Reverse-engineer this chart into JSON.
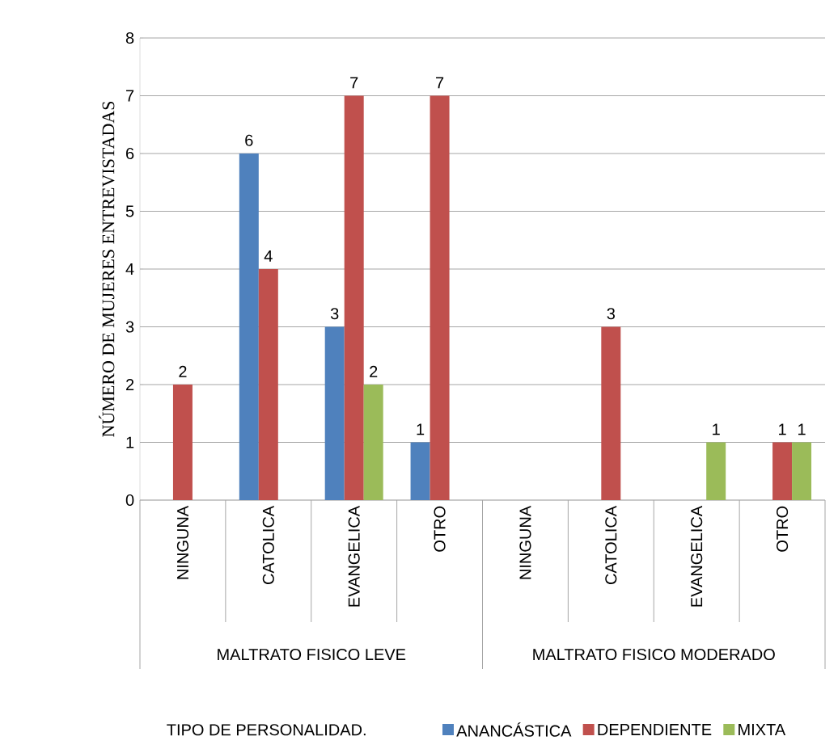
{
  "chart_data": {
    "type": "bar",
    "ylabel": "NÚMERO DE MUJERES ENTREVISTADAS",
    "legend_title": "TIPO DE PERSONALIDAD.",
    "categories": [
      "NINGUNA",
      "CATOLICA",
      "EVANGELICA",
      "OTRO",
      "NINGUNA",
      "CATOLICA",
      "EVANGELICA",
      "OTRO"
    ],
    "annotations": [
      "MALTRATO FISICO LEVE",
      "MALTRATO FISICO MODERADO"
    ],
    "series": [
      {
        "name": "ANANCÁSTICA",
        "color": "#4f81bd",
        "values": [
          null,
          6,
          3,
          1,
          null,
          null,
          null,
          null
        ]
      },
      {
        "name": "DEPENDIENTE",
        "color": "#c0504d",
        "values": [
          2,
          4,
          7,
          7,
          null,
          3,
          null,
          1
        ]
      },
      {
        "name": "MIXTA",
        "color": "#9bbb59",
        "values": [
          null,
          null,
          2,
          null,
          null,
          null,
          1,
          1
        ]
      }
    ],
    "ylim": [
      0,
      8
    ],
    "yticks": [
      0,
      1,
      2,
      3,
      4,
      5,
      6,
      7,
      8
    ],
    "grid": "y",
    "legend": "bottom",
    "data_labels": true
  }
}
